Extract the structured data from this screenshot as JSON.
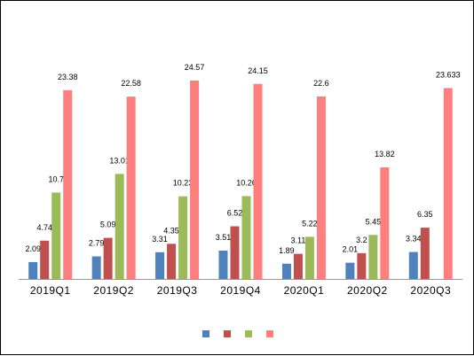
{
  "chart_data": {
    "type": "bar",
    "title": "",
    "xlabel": "",
    "ylabel": "",
    "ylim": [
      0,
      25
    ],
    "grid": false,
    "legend_position": "bottom",
    "categories": [
      "2019Q1",
      "2019Q2",
      "2019Q3",
      "2019Q4",
      "2020Q1",
      "2020Q2",
      "2020Q3"
    ],
    "series": [
      {
        "color": "#4f81bd",
        "values": [
          2.09,
          2.79,
          3.31,
          3.51,
          1.89,
          2.01,
          3.34
        ],
        "labels": [
          "2.09",
          "2.79",
          "3.31",
          "3.51",
          "1.89",
          "2.01",
          "3.34"
        ]
      },
      {
        "color": "#c0504d",
        "values": [
          4.74,
          5.09,
          4.35,
          6.52,
          3.11,
          3.2,
          6.35
        ],
        "labels": [
          "4.74",
          "5.09",
          "4.35",
          "6.52",
          "3.11",
          "3.2",
          "6.35"
        ]
      },
      {
        "color": "#9bbb59",
        "values": [
          10.7,
          13.01,
          10.23,
          10.26,
          5.22,
          5.45,
          null
        ],
        "labels": [
          "10.7",
          "13.01",
          "10.23",
          "10.26",
          "5.22",
          "5.45",
          ""
        ]
      },
      {
        "color": "#ff7f7f",
        "values": [
          23.38,
          22.58,
          24.57,
          24.15,
          22.6,
          13.82,
          23.633
        ],
        "labels": [
          "23.38",
          "22.58",
          "24.57",
          "24.15",
          "22.6",
          "13.82",
          "23.633"
        ]
      }
    ]
  }
}
